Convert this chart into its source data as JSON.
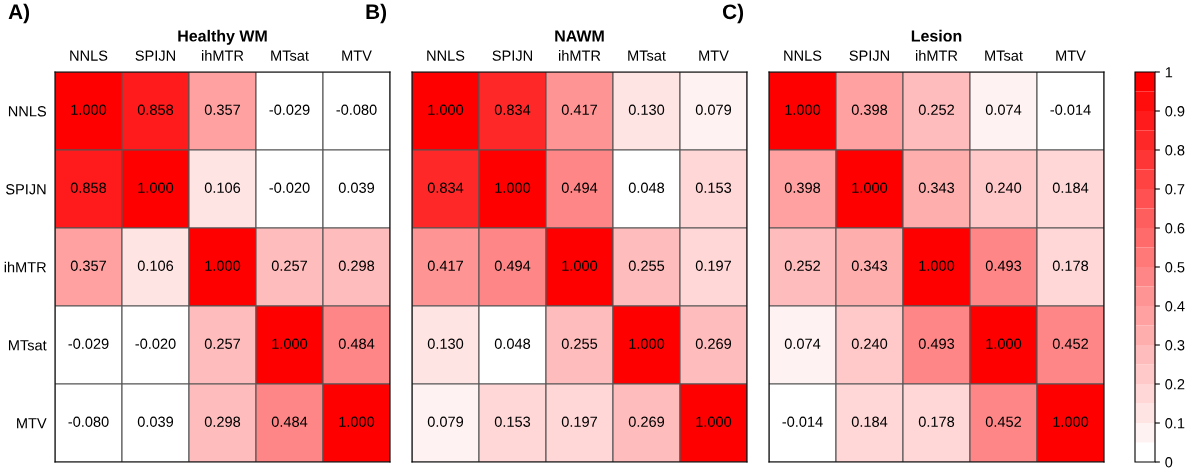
{
  "chart_data": [
    {
      "type": "heatmap",
      "title": "Healthy WM",
      "annotations": [
        "A)"
      ],
      "categories": [
        "NNLS",
        "SPIJN",
        "ihMTR",
        "MTsat",
        "MTV"
      ],
      "y_categories": [
        "NNLS",
        "SPIJN",
        "ihMTR",
        "MTsat",
        "MTV"
      ],
      "cells": [
        [
          1.0,
          0.858,
          0.357,
          -0.029,
          -0.08
        ],
        [
          0.858,
          1.0,
          0.106,
          -0.02,
          0.039
        ],
        [
          0.357,
          0.106,
          1.0,
          0.257,
          0.298
        ],
        [
          -0.029,
          -0.02,
          0.257,
          1.0,
          0.484
        ],
        [
          -0.08,
          0.039,
          0.298,
          0.484,
          1.0
        ]
      ],
      "cell_labels": [
        [
          "1.000",
          "0.858",
          "0.357",
          "-0.029",
          "-0.080"
        ],
        [
          "0.858",
          "1.000",
          "0.106",
          "-0.020",
          "0.039"
        ],
        [
          "0.357",
          "0.106",
          "1.000",
          "0.257",
          "0.298"
        ],
        [
          "-0.029",
          "-0.020",
          "0.257",
          "1.000",
          "0.484"
        ],
        [
          "-0.080",
          "0.039",
          "0.298",
          "0.484",
          "1.000"
        ]
      ]
    },
    {
      "type": "heatmap",
      "title": "NAWM",
      "tick_labels": "x",
      "annotations": [
        "B)"
      ],
      "categories": [
        "NNLS",
        "SPIJN",
        "ihMTR",
        "MTsat",
        "MTV"
      ],
      "y_categories": [
        null,
        null,
        null,
        null,
        null
      ],
      "cells": [
        [
          1.0,
          0.834,
          0.417,
          0.13,
          0.079
        ],
        [
          0.834,
          1.0,
          0.494,
          0.048,
          0.153
        ],
        [
          0.417,
          0.494,
          1.0,
          0.255,
          0.197
        ],
        [
          0.13,
          0.048,
          0.255,
          1.0,
          0.269
        ],
        [
          0.079,
          0.153,
          0.197,
          0.269,
          1.0
        ]
      ],
      "cell_labels": [
        [
          "1.000",
          "0.834",
          "0.417",
          "0.130",
          "0.079"
        ],
        [
          "0.834",
          "1.000",
          "0.494",
          "0.048",
          "0.153"
        ],
        [
          "0.417",
          "0.494",
          "1.000",
          "0.255",
          "0.197"
        ],
        [
          "0.130",
          "0.048",
          "0.255",
          "1.000",
          "0.269"
        ],
        [
          "0.079",
          "0.153",
          "0.197",
          "0.269",
          "1.000"
        ]
      ]
    },
    {
      "type": "heatmap",
      "title": "Lesion",
      "tick_labels": "x",
      "annotations": [
        "C)"
      ],
      "categories": [
        "NNLS",
        "SPIJN",
        "ihMTR",
        "MTsat",
        "MTV"
      ],
      "y_categories": [
        null,
        null,
        null,
        null,
        null
      ],
      "cells": [
        [
          1.0,
          0.398,
          0.252,
          0.074,
          -0.014
        ],
        [
          0.398,
          1.0,
          0.343,
          0.24,
          0.184
        ],
        [
          0.252,
          0.343,
          1.0,
          0.493,
          0.178
        ],
        [
          0.074,
          0.24,
          0.493,
          1.0,
          0.452
        ],
        [
          -0.014,
          0.184,
          0.178,
          0.452,
          1.0
        ]
      ],
      "cell_labels": [
        [
          "1.000",
          "0.398",
          "0.252",
          "0.074",
          "-0.014"
        ],
        [
          "0.398",
          "1.000",
          "0.343",
          "0.240",
          "0.184"
        ],
        [
          "0.252",
          "0.343",
          "1.000",
          "0.493",
          "0.178"
        ],
        [
          "0.074",
          "0.240",
          "0.493",
          "1.000",
          "0.452"
        ],
        [
          "-0.014",
          "0.184",
          "0.178",
          "0.452",
          "1.000"
        ]
      ],
      "clim": [
        0,
        1
      ],
      "cticks": [
        0,
        0.1,
        0.2,
        0.3,
        0.4,
        0.5,
        0.6,
        0.7,
        0.8,
        0.9,
        1
      ]
    }
  ]
}
